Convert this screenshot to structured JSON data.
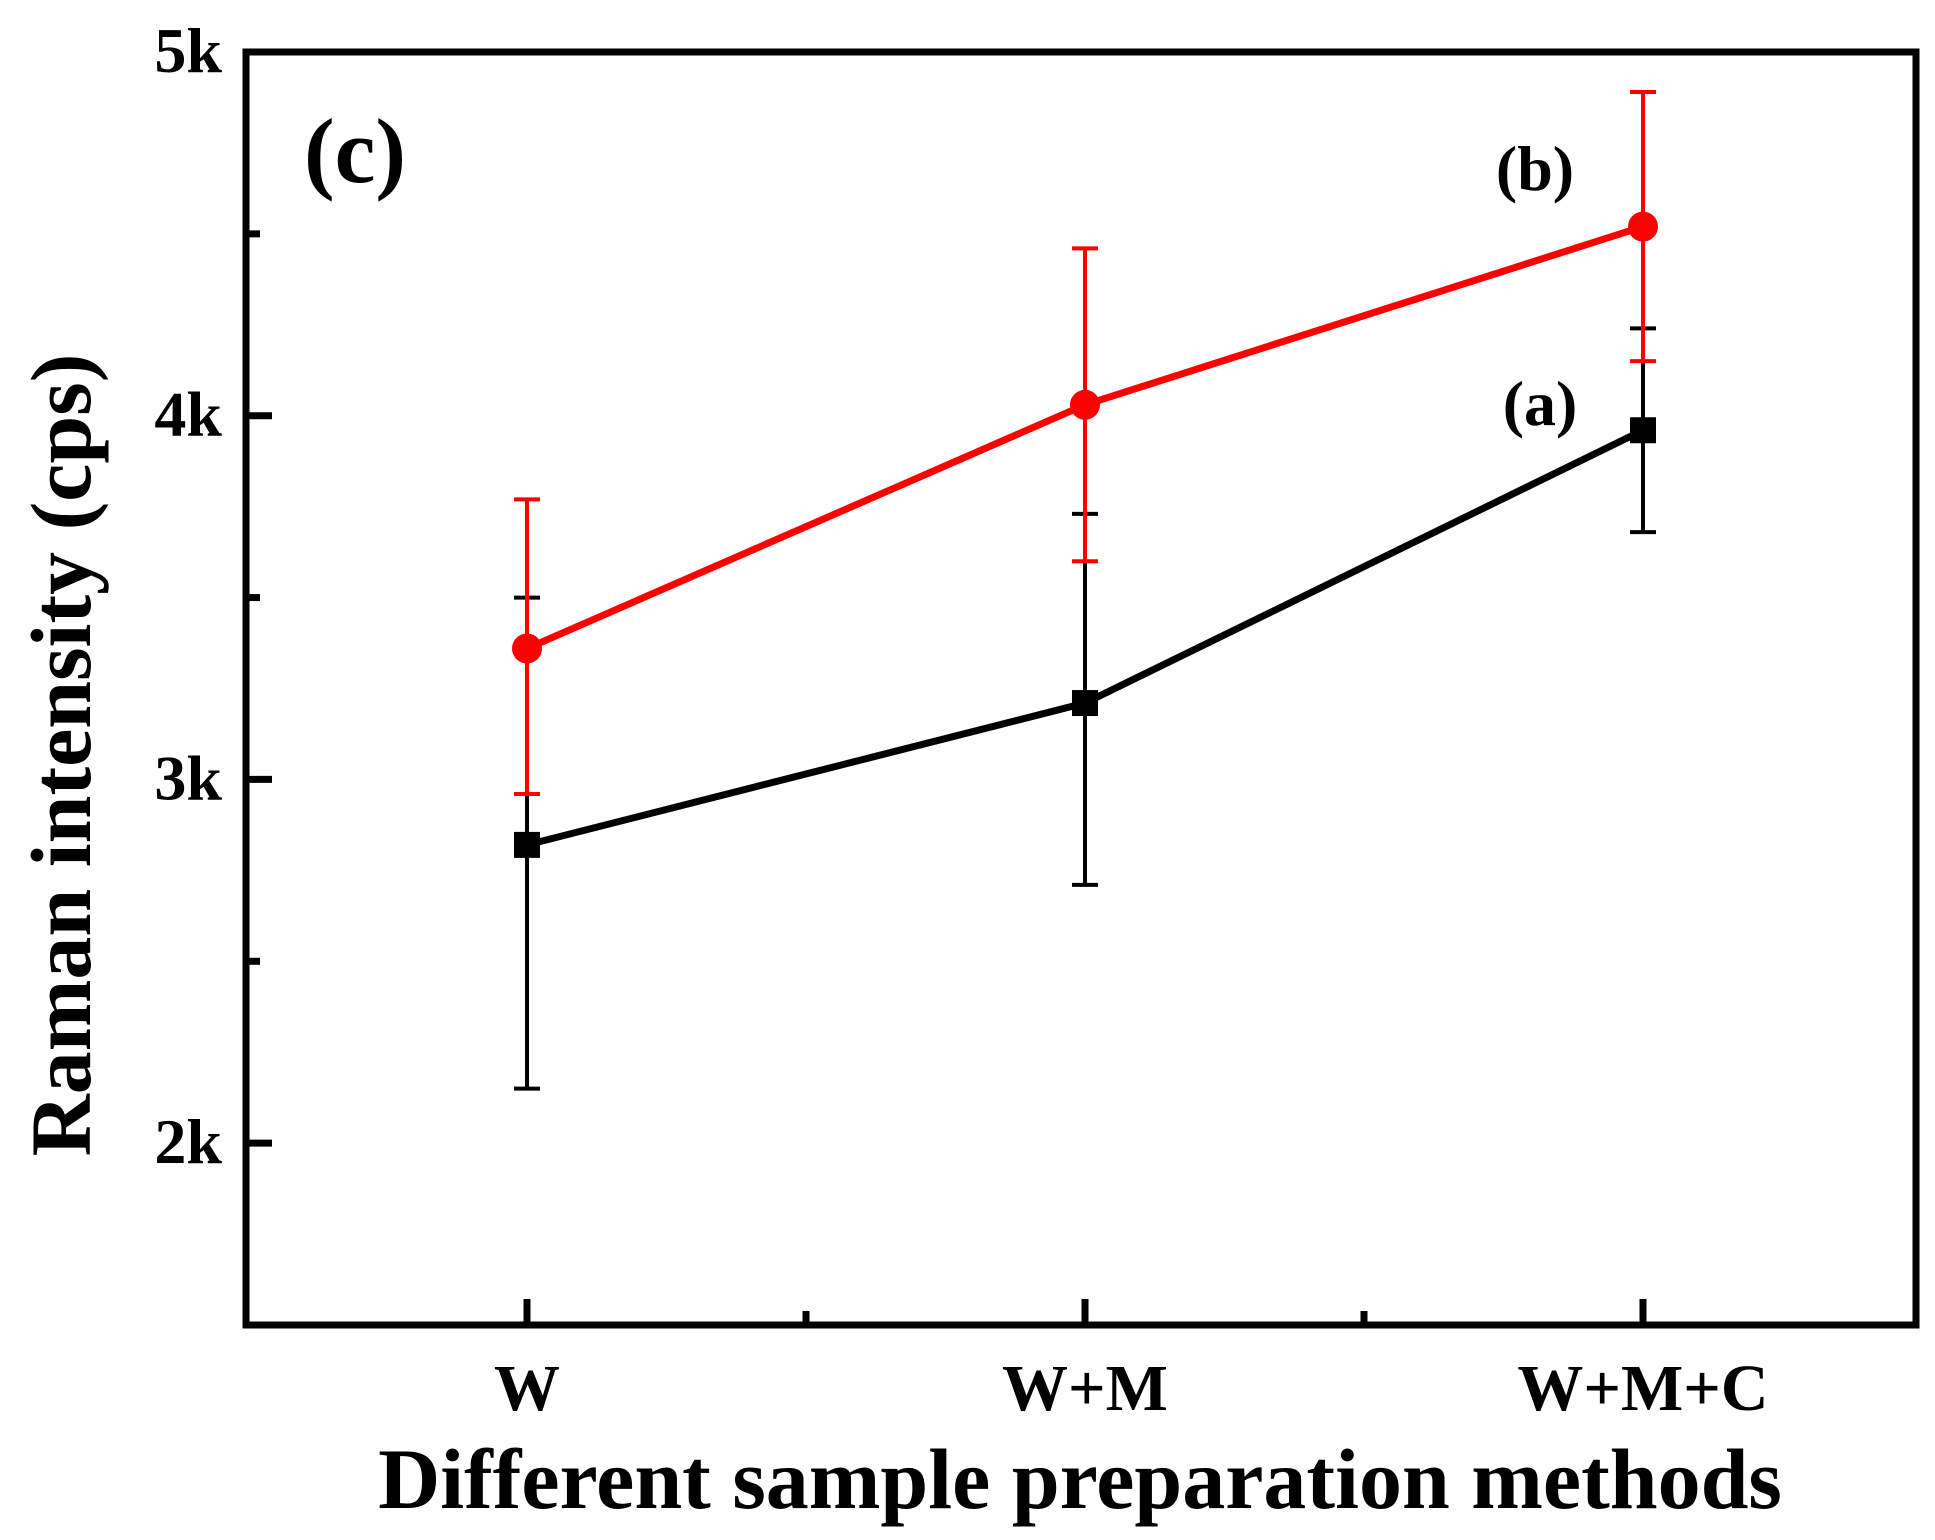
{
  "colors": {
    "series_a": "#000000",
    "series_b": "#ff0000",
    "axis": "#000000",
    "background": "#ffffff"
  },
  "chart_data": {
    "type": "line",
    "panel_label": "(c)",
    "title": "",
    "xlabel": "Different sample preparation methods",
    "ylabel": "Raman intensity (cps)",
    "categories": [
      "W",
      "W+M",
      "W+M+C"
    ],
    "ylim": [
      1500,
      5000
    ],
    "y_ticks": [
      2000,
      3000,
      4000,
      5000
    ],
    "y_tick_labels": [
      "2k",
      "3k",
      "4k",
      "5k"
    ],
    "y_minor_ticks": [
      2500,
      3500,
      4500
    ],
    "legend": "none",
    "grid": false,
    "series": [
      {
        "name": "(a)",
        "marker": "square",
        "color": "#000000",
        "values": [
          2820,
          3210,
          3960
        ],
        "error_upper": [
          3500,
          3730,
          4240
        ],
        "error_lower": [
          2150,
          2710,
          3680
        ]
      },
      {
        "name": "(b)",
        "marker": "circle",
        "color": "#ff0000",
        "values": [
          3360,
          4030,
          4520
        ],
        "error_upper": [
          3770,
          4460,
          4890
        ],
        "error_lower": [
          2960,
          3600,
          4150
        ]
      }
    ]
  }
}
